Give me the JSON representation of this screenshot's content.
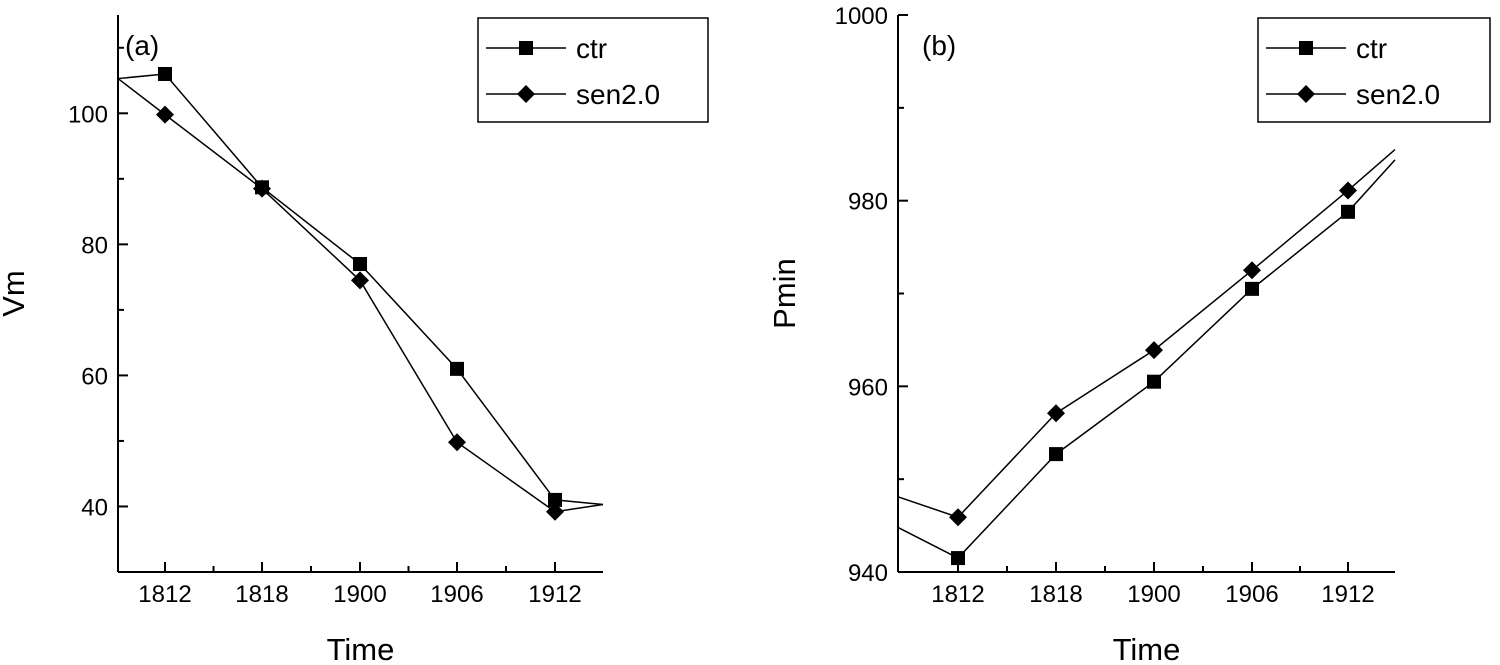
{
  "chart_data": [
    {
      "panel_label": "(a)",
      "type": "line",
      "xlabel": "Time",
      "ylabel": "Vm",
      "categories": [
        "1812",
        "1818",
        "1900",
        "1906",
        "1912"
      ],
      "ylim": [
        30,
        115
      ],
      "yticks": [
        40,
        60,
        80,
        100
      ],
      "legend_position": "top-right",
      "series": [
        {
          "name": "ctr",
          "marker": "square",
          "values": [
            106.0,
            88.7,
            77.0,
            61.0,
            41.0
          ],
          "ext_left": 105.3,
          "ext_right": 40.3
        },
        {
          "name": "sen2.0",
          "marker": "diamond",
          "values": [
            99.8,
            88.5,
            74.5,
            49.8,
            39.2
          ],
          "ext_left": 105.3,
          "ext_right": 40.3
        }
      ]
    },
    {
      "panel_label": "(b)",
      "type": "line",
      "xlabel": "Time",
      "ylabel": "Pmin",
      "categories": [
        "1812",
        "1818",
        "1900",
        "1906",
        "1912"
      ],
      "ylim": [
        940,
        1000
      ],
      "yticks": [
        940,
        960,
        980,
        1000
      ],
      "legend_position": "top-right",
      "series": [
        {
          "name": "ctr",
          "marker": "square",
          "values": [
            941.5,
            952.7,
            960.5,
            970.5,
            978.8
          ],
          "ext_left": 944.8,
          "ext_right": 984.4
        },
        {
          "name": "sen2.0",
          "marker": "diamond",
          "values": [
            945.9,
            957.1,
            963.9,
            972.5,
            981.1
          ],
          "ext_left": 948.1,
          "ext_right": 985.5
        }
      ]
    }
  ]
}
